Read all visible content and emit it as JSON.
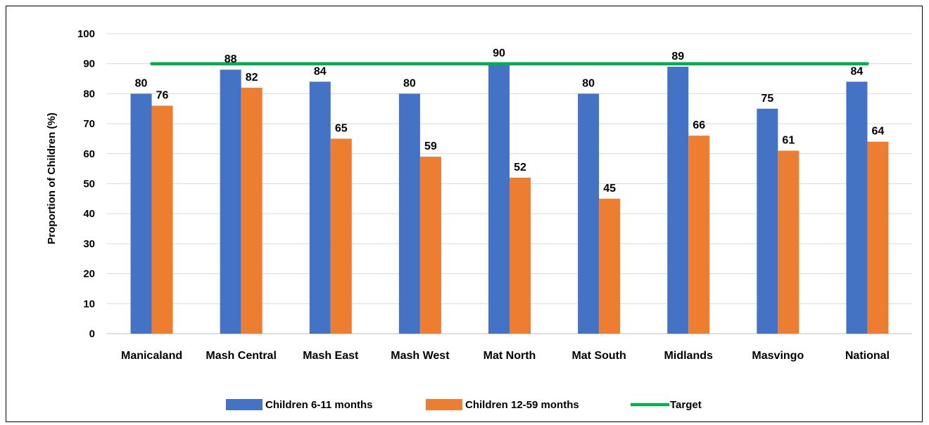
{
  "chart_data": {
    "type": "bar",
    "title": "",
    "xlabel": "",
    "ylabel": "Proportion of Children (%)",
    "ylim": [
      0,
      100
    ],
    "yticks": [
      0,
      10,
      20,
      30,
      40,
      50,
      60,
      70,
      80,
      90,
      100
    ],
    "grid": true,
    "legend_position": "bottom",
    "categories": [
      "Manicaland",
      "Mash Central",
      "Mash East",
      "Mash West",
      "Mat North",
      "Mat South",
      "Midlands",
      "Masvingo",
      "National"
    ],
    "series": [
      {
        "name": "Children 6-11 months",
        "type": "bar",
        "color": "#4472C4",
        "values": [
          80,
          88,
          84,
          80,
          90,
          80,
          89,
          75,
          84
        ],
        "labels": [
          "80",
          "88",
          "84",
          "80",
          "90",
          "80",
          "89",
          "75",
          "84"
        ]
      },
      {
        "name": "Children 12-59 months",
        "type": "bar",
        "color": "#ED7D31",
        "values": [
          76,
          82,
          65,
          59,
          52,
          45,
          66,
          61,
          64
        ],
        "labels": [
          "76",
          "82",
          "65",
          "59",
          "52",
          "45",
          "66",
          "61",
          "64"
        ]
      },
      {
        "name": "Target",
        "type": "line",
        "color": "#00B050",
        "value": 90
      }
    ]
  }
}
